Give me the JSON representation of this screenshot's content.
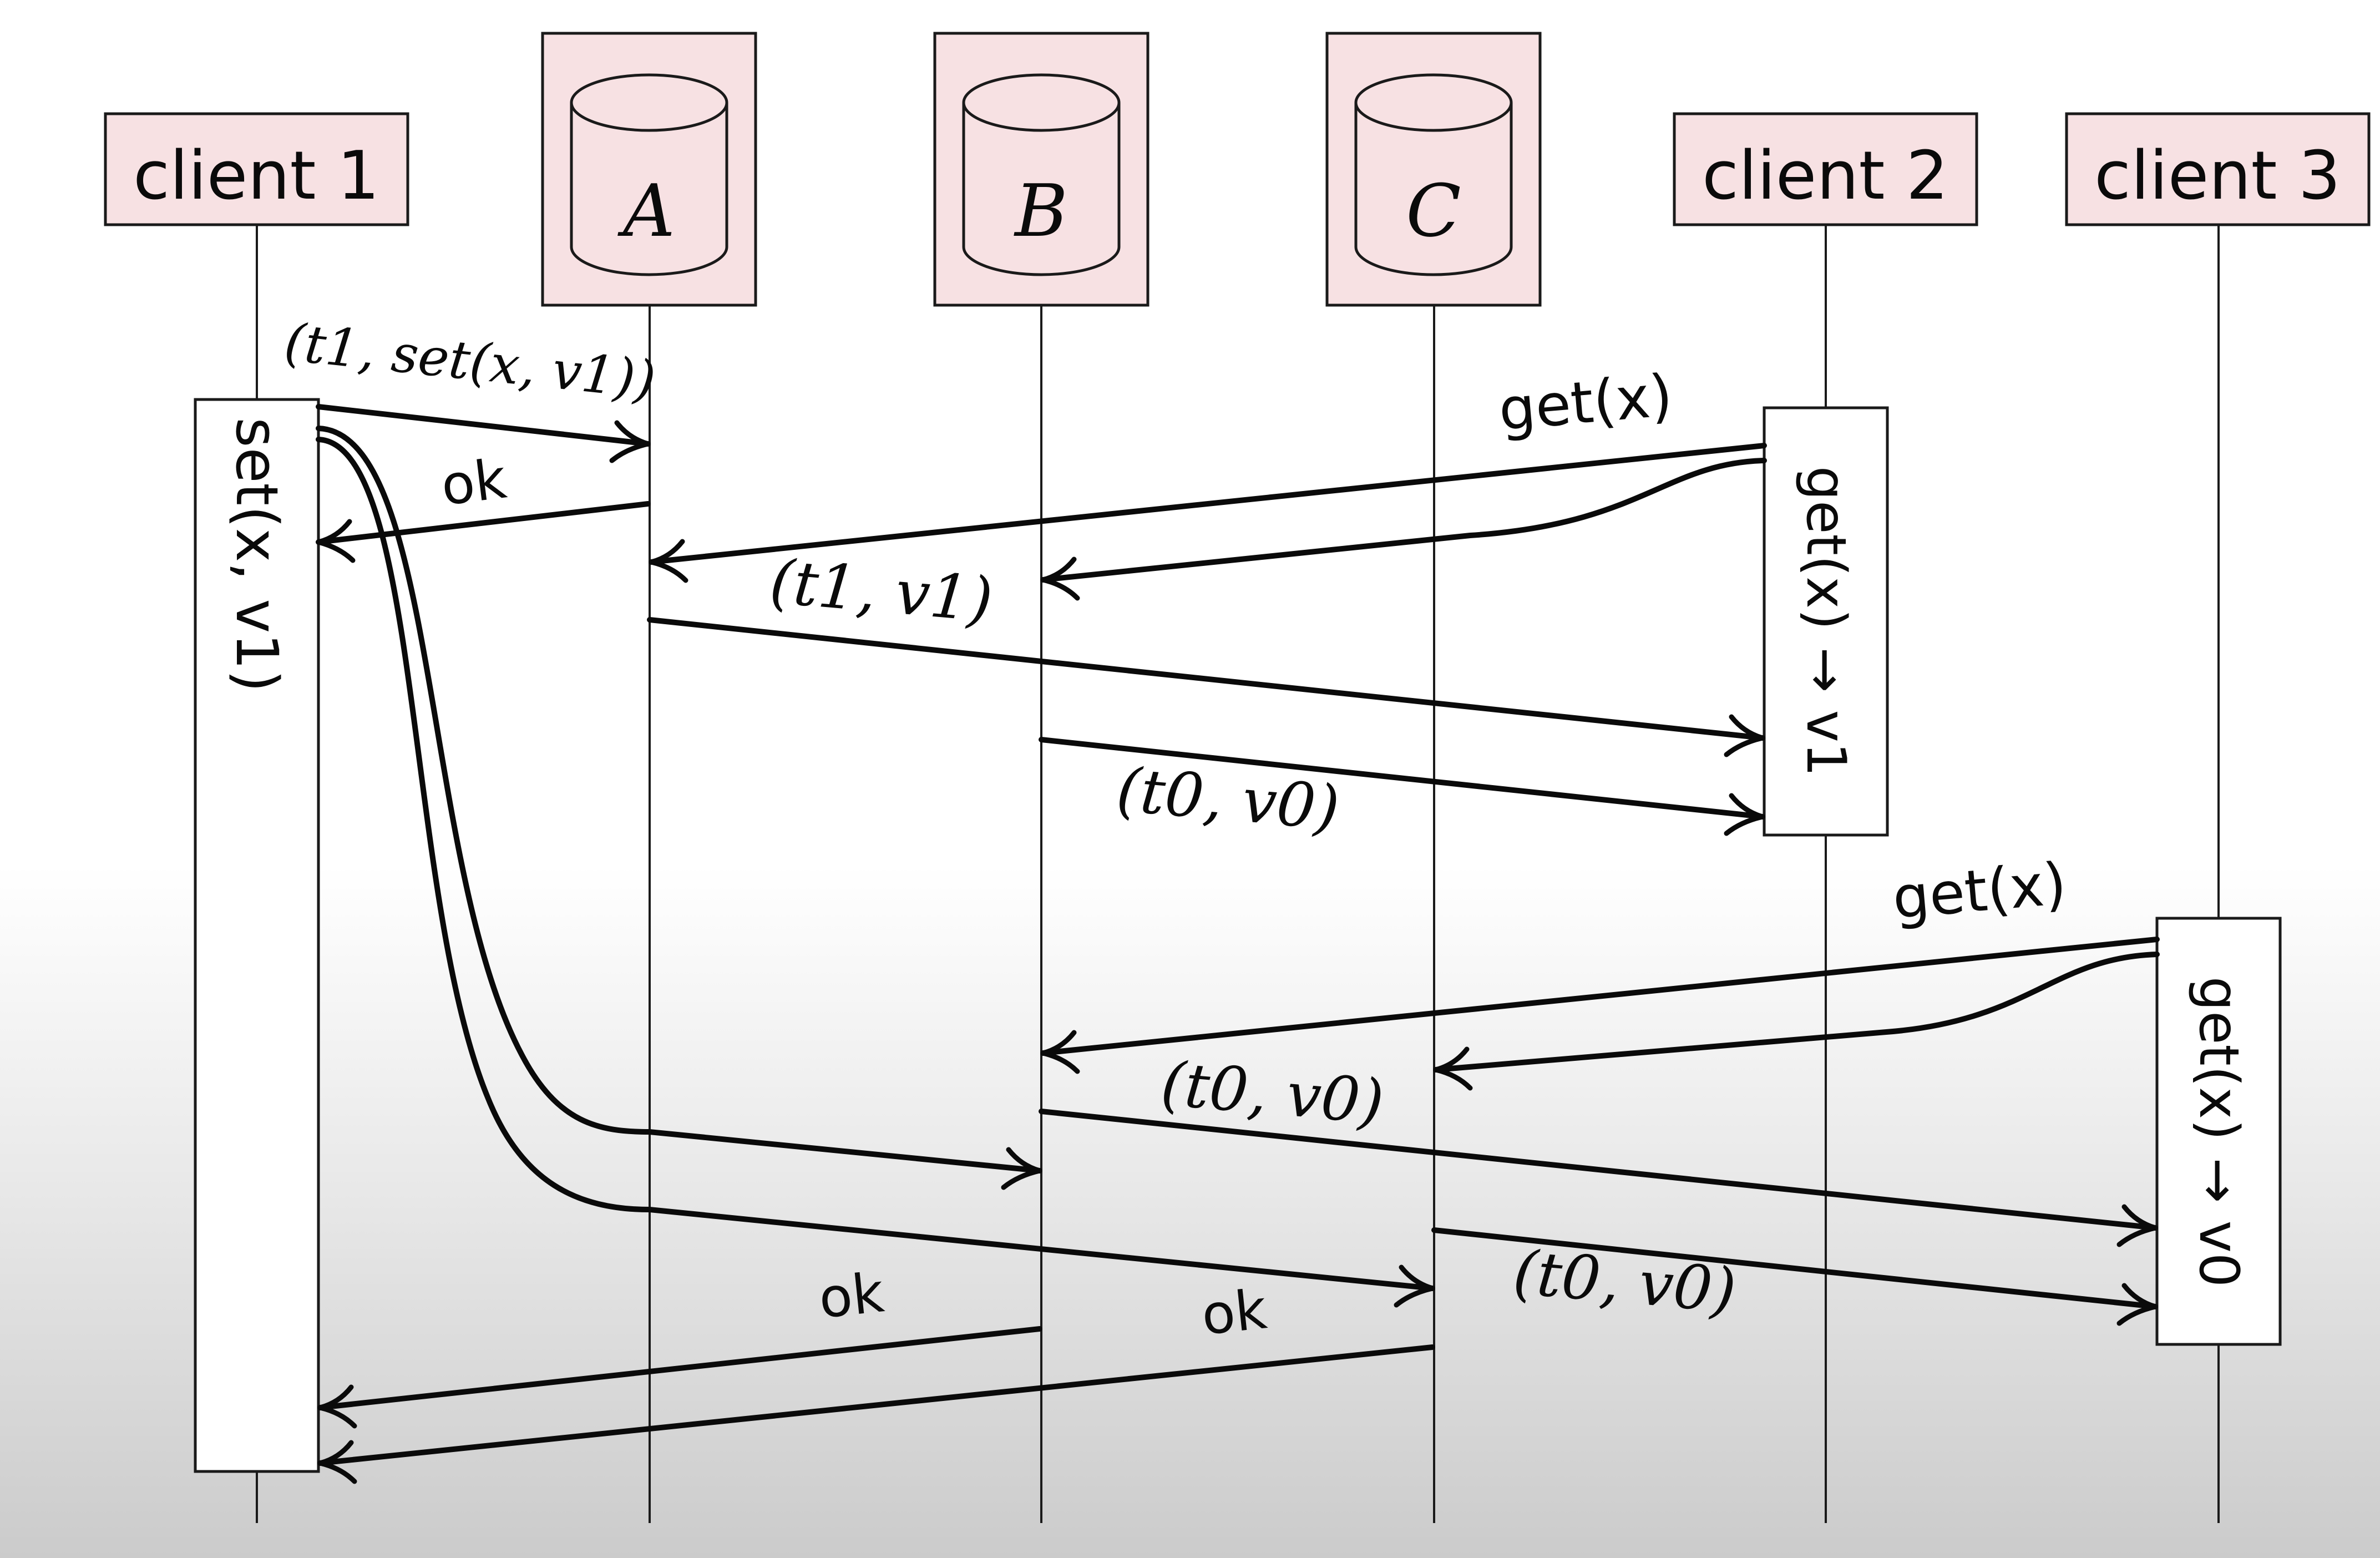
{
  "participants": {
    "client1": "client 1",
    "A": "A",
    "B": "B",
    "C": "C",
    "client2": "client 2",
    "client3": "client 3"
  },
  "activations": {
    "client1": "set(x, v1)",
    "client2": "get(x) → v1",
    "client3": "get(x) → v0"
  },
  "messages": {
    "set_request": "(t1, set(x, v1))",
    "ok_from_A": "ok",
    "get_client2": "get(x)",
    "reply_A": "(t1, v1)",
    "reply_B_client2": "(t0, v0)",
    "get_client3": "get(x)",
    "reply_B_client3": "(t0, v0)",
    "ok_from_B": "ok",
    "ok_from_C": "ok",
    "reply_C_client3": "(t0, v0)"
  }
}
